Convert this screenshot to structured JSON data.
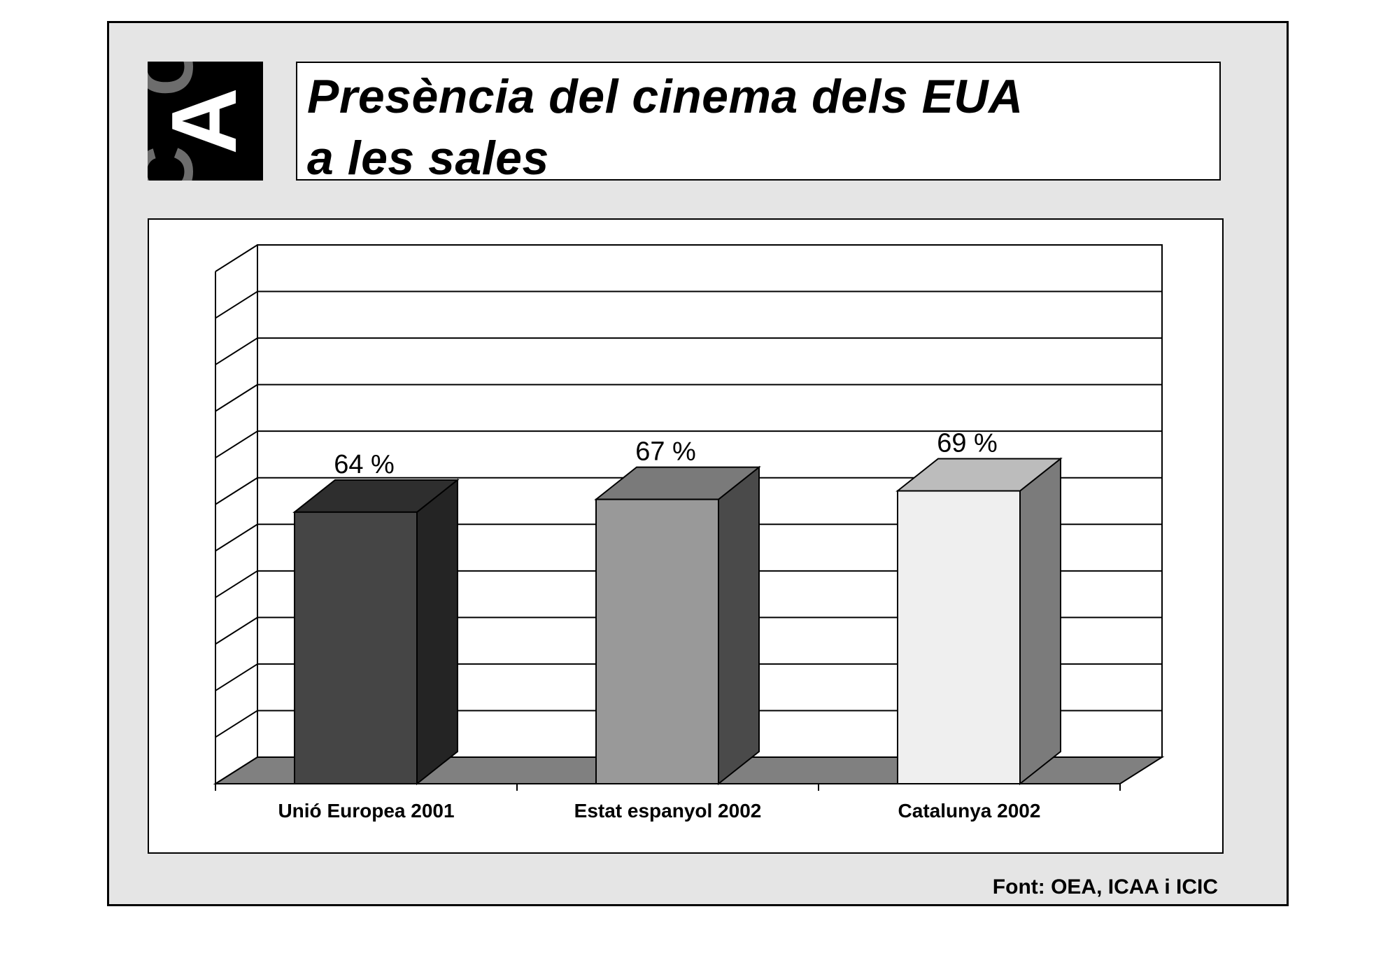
{
  "slide": {
    "title_line1": "Presència del cinema dels EUA",
    "title_line2": "a les sales",
    "source": "Font: OEA, ICAA i ICIC",
    "logo_text": "CAC"
  },
  "chart_data": {
    "type": "bar",
    "title": "",
    "xlabel": "",
    "ylabel": "",
    "categories": [
      "Unió Europea 2001",
      "Estat espanyol 2002",
      "Catalunya 2002"
    ],
    "values": [
      64,
      67,
      69
    ],
    "value_labels": [
      "64 %",
      "67 %",
      "69 %"
    ],
    "ylim": [
      0,
      105
    ],
    "grid": true,
    "legend": "none",
    "style": "3d",
    "colors": {
      "bars_front": [
        "#454545",
        "#999999",
        "#efefef"
      ],
      "bars_top": [
        "#2e2e2e",
        "#7a7a7a",
        "#bcbcbc"
      ],
      "bars_side": [
        "#242424",
        "#4a4a4a",
        "#7b7b7b"
      ],
      "floor": "#808080"
    }
  }
}
